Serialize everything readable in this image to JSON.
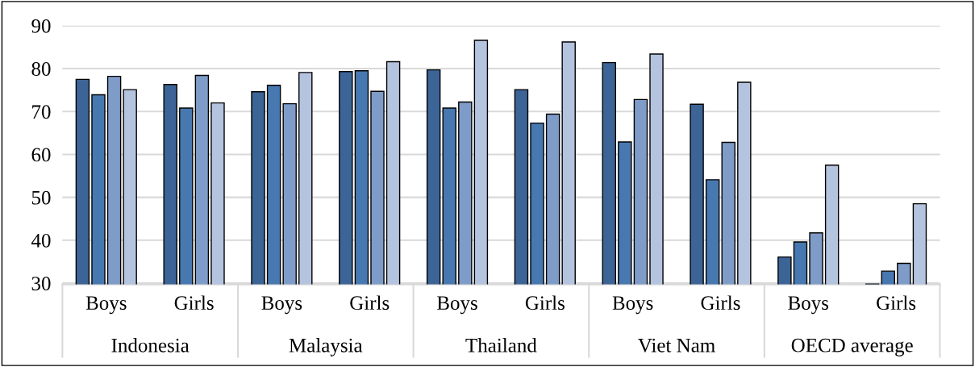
{
  "chart_data": {
    "type": "bar",
    "categories": [
      "Boys",
      "Girls",
      "Boys",
      "Girls",
      "Boys",
      "Girls",
      "Boys",
      "Girls",
      "Boys",
      "Girls"
    ],
    "annotations": [
      "Indonesia",
      "Malaysia",
      "Thailand",
      "Viet Nam",
      "OECD average"
    ],
    "series": [
      {
        "color": "#3c6496",
        "values": [
          77.5,
          76.3,
          74.6,
          79.3,
          79.7,
          75.1,
          81.4,
          71.7,
          36.1,
          29.8
        ]
      },
      {
        "color": "#4878b0",
        "values": [
          73.9,
          70.8,
          76.1,
          79.5,
          70.8,
          67.3,
          62.9,
          54.1,
          39.6,
          32.8
        ]
      },
      {
        "color": "#7f9cc8",
        "values": [
          78.2,
          78.4,
          71.8,
          74.7,
          72.2,
          69.4,
          72.8,
          62.8,
          41.7,
          34.6
        ]
      },
      {
        "color": "#b4c3de",
        "values": [
          75.1,
          72.0,
          79.1,
          81.6,
          86.6,
          86.2,
          83.4,
          76.8,
          57.5,
          48.5
        ]
      }
    ],
    "ylim": [
      29.7,
      90
    ],
    "yticks": [
      30,
      40,
      50,
      60,
      70,
      80,
      90
    ],
    "grid": "y",
    "legend": false
  }
}
